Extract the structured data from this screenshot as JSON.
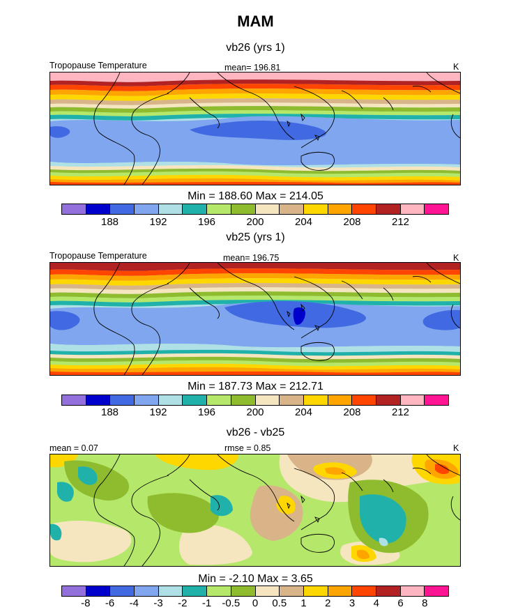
{
  "figure": {
    "title": "MAM",
    "panels": [
      {
        "title": "vb26 (yrs 1)",
        "left_label": "Tropopause Temperature",
        "center_label": "mean= 196.81",
        "right_label": "K",
        "stats": "Min = 188.60 Max = 214.05"
      },
      {
        "title": "vb25 (yrs 1)",
        "left_label": "Tropopause Temperature",
        "center_label": "mean= 196.75",
        "right_label": "K",
        "stats": "Min = 187.73 Max = 212.71"
      },
      {
        "title": "vb26 - vb25",
        "left_label": "mean =   0.07",
        "center_label": "rmse =   0.85",
        "right_label": "K",
        "stats": "Min =  -2.10 Max =   3.65"
      }
    ]
  },
  "colors": {
    "palette": [
      "#9370db",
      "#0000cd",
      "#4169e1",
      "#7fa6ee",
      "#aee0e6",
      "#20b2aa",
      "#b5e86a",
      "#8fbc2f",
      "#f5e6c0",
      "#d9b488",
      "#ffd700",
      "#ffa500",
      "#ff4500",
      "#b22222",
      "#ffb6c1",
      "#ff1493"
    ],
    "coast": "#000000"
  },
  "chart_data": [
    {
      "type": "heatmap",
      "title": "vb26 (yrs 1)",
      "variable": "Tropopause Temperature",
      "units": "K",
      "mean": 196.81,
      "min": 188.6,
      "max": 214.05,
      "colorbar_levels": [
        186,
        188,
        190,
        192,
        194,
        196,
        198,
        200,
        202,
        204,
        206,
        208,
        210,
        212,
        214
      ],
      "colorbar_tick_labels": [
        "188",
        "192",
        "196",
        "200",
        "204",
        "208",
        "212"
      ]
    },
    {
      "type": "heatmap",
      "title": "vb25 (yrs 1)",
      "variable": "Tropopause Temperature",
      "units": "K",
      "mean": 196.75,
      "min": 187.73,
      "max": 212.71,
      "colorbar_levels": [
        186,
        188,
        190,
        192,
        194,
        196,
        198,
        200,
        202,
        204,
        206,
        208,
        210,
        212,
        214
      ],
      "colorbar_tick_labels": [
        "188",
        "192",
        "196",
        "200",
        "204",
        "208",
        "212"
      ]
    },
    {
      "type": "heatmap",
      "title": "vb26 - vb25",
      "units": "K",
      "mean": 0.07,
      "rmse": 0.85,
      "min": -2.1,
      "max": 3.65,
      "colorbar_levels": [
        -8,
        -6,
        -4,
        -3,
        -2,
        -1,
        -0.5,
        0,
        0.5,
        1,
        2,
        3,
        4,
        6,
        8
      ],
      "colorbar_tick_labels": [
        "-8",
        "-6",
        "-4",
        "-3",
        "-2",
        "-1",
        "-0.5",
        "0",
        "0.5",
        "1",
        "2",
        "3",
        "4",
        "6",
        "8"
      ]
    }
  ]
}
